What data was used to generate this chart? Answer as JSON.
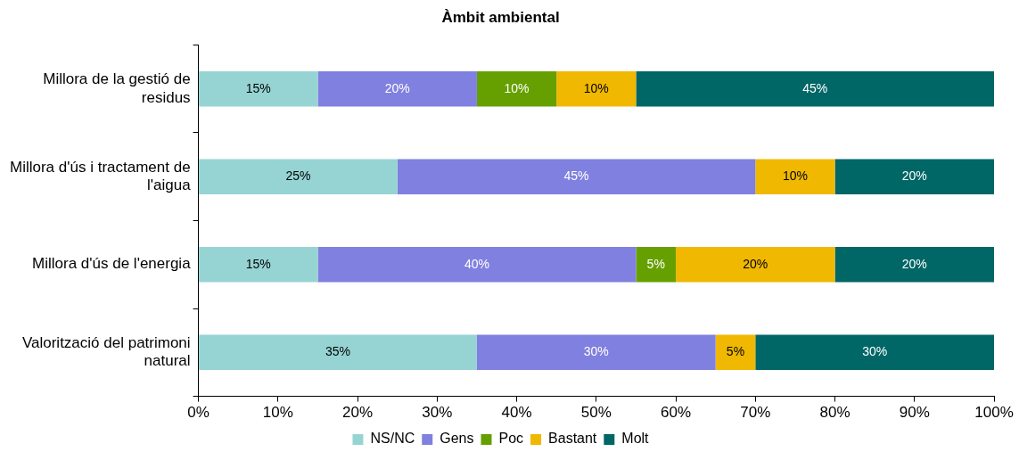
{
  "chart_data": {
    "type": "bar",
    "orientation": "horizontal",
    "stacked": true,
    "title": "Àmbit ambiental",
    "categories": [
      "Millora de la gestió de residus",
      "Millora d'ús i tractament de l'aigua",
      "Millora d'ús de l'energia",
      "Valorització del patrimoni natural"
    ],
    "series": [
      {
        "name": "NS/NC",
        "color": "#96d4d4",
        "values": [
          15,
          25,
          15,
          35
        ],
        "value_labels": [
          "15%",
          "25%",
          "15%",
          "35%"
        ]
      },
      {
        "name": "Gens",
        "color": "#8080e0",
        "values": [
          20,
          45,
          40,
          30
        ],
        "value_labels": [
          "20%",
          "45%",
          "40%",
          "30%"
        ]
      },
      {
        "name": "Poc",
        "color": "#66a000",
        "values": [
          10,
          null,
          5,
          null
        ],
        "value_labels": [
          "10%",
          null,
          "5%",
          null
        ]
      },
      {
        "name": "Bastant",
        "color": "#f0b800",
        "values": [
          10,
          10,
          20,
          5
        ],
        "value_labels": [
          "10%",
          "10%",
          "20%",
          "5%"
        ]
      },
      {
        "name": "Molt",
        "color": "#006666",
        "values": [
          45,
          20,
          20,
          30
        ],
        "value_labels": [
          "45%",
          "20%",
          "20%",
          "30%"
        ]
      }
    ],
    "xlim": [
      0,
      100
    ],
    "xticks": [
      {
        "value": 0,
        "label": "0%"
      },
      {
        "value": 10,
        "label": "10%"
      },
      {
        "value": 20,
        "label": "20%"
      },
      {
        "value": 30,
        "label": "30%"
      },
      {
        "value": 40,
        "label": "40%"
      },
      {
        "value": 50,
        "label": "50%"
      },
      {
        "value": 60,
        "label": "60%"
      },
      {
        "value": 70,
        "label": "70%"
      },
      {
        "value": 80,
        "label": "80%"
      },
      {
        "value": 90,
        "label": "90%"
      },
      {
        "value": 100,
        "label": "100%"
      }
    ],
    "grid": false,
    "legend": "bottom"
  }
}
